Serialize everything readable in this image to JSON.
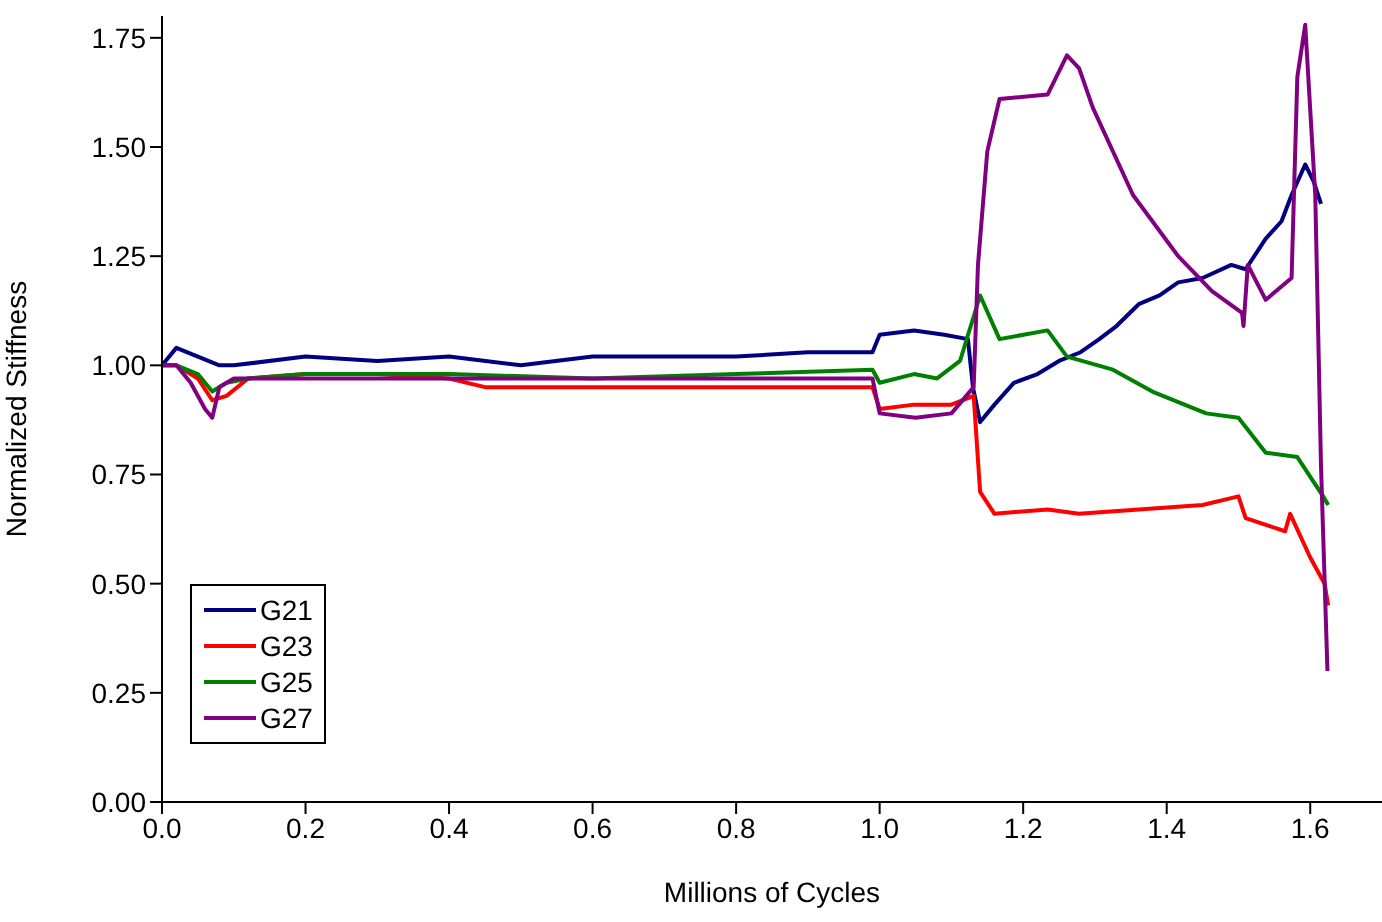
{
  "chart_data": {
    "type": "line",
    "xlabel": "Millions of Cycles",
    "ylabel": "Normalized Stiffness",
    "xlim": [
      0,
      1.7
    ],
    "ylim": [
      0,
      1.8
    ],
    "xticks": [
      {
        "value": 0,
        "label": "0.0"
      },
      {
        "value": 0.2,
        "label": "0.2"
      },
      {
        "value": 0.4,
        "label": "0.4"
      },
      {
        "value": 0.6,
        "label": "0.6"
      },
      {
        "value": 0.8,
        "label": "0.8"
      },
      {
        "value": 1,
        "label": "1.0"
      },
      {
        "value": 1.2,
        "label": "1.2"
      },
      {
        "value": 1.4,
        "label": "1.4"
      },
      {
        "value": 1.6,
        "label": "1.6"
      }
    ],
    "yticks": [
      {
        "value": 0,
        "label": "0.00"
      },
      {
        "value": 0.25,
        "label": "0.25"
      },
      {
        "value": 0.5,
        "label": "0.50"
      },
      {
        "value": 0.75,
        "label": "0.75"
      },
      {
        "value": 1,
        "label": "1.00"
      },
      {
        "value": 1.25,
        "label": "1.25"
      },
      {
        "value": 1.5,
        "label": "1.50"
      },
      {
        "value": 1.75,
        "label": "1.75"
      }
    ],
    "grid": false,
    "legend": "bottom left",
    "marker": "none",
    "line_style": "solid",
    "series": [
      {
        "name": "G21",
        "color": "#000080",
        "x": [
          0,
          0.02,
          0.05,
          0.08,
          0.1,
          0.2,
          0.3,
          0.4,
          0.5,
          0.6,
          0.7,
          0.8,
          0.9,
          0.99,
          1.0,
          1.048,
          1.09,
          1.123,
          1.13,
          1.14,
          1.16,
          1.187,
          1.22,
          1.25,
          1.28,
          1.306,
          1.33,
          1.361,
          1.39,
          1.416,
          1.45,
          1.49,
          1.51,
          1.538,
          1.56,
          1.574,
          1.593,
          1.605,
          1.615
        ],
        "values": [
          1.0,
          1.04,
          1.02,
          1.0,
          1.0,
          1.02,
          1.01,
          1.02,
          1.0,
          1.02,
          1.02,
          1.02,
          1.03,
          1.03,
          1.07,
          1.08,
          1.07,
          1.06,
          0.95,
          0.87,
          0.91,
          0.96,
          0.98,
          1.01,
          1.03,
          1.06,
          1.09,
          1.14,
          1.16,
          1.19,
          1.2,
          1.23,
          1.22,
          1.29,
          1.33,
          1.39,
          1.46,
          1.42,
          1.37
        ]
      },
      {
        "name": "G23",
        "color": "#ff0000",
        "x": [
          0,
          0.02,
          0.05,
          0.07,
          0.09,
          0.12,
          0.2,
          0.3,
          0.4,
          0.45,
          0.6,
          0.8,
          0.99,
          1.0,
          1.048,
          1.1,
          1.131,
          1.14,
          1.16,
          1.234,
          1.278,
          1.361,
          1.45,
          1.5,
          1.51,
          1.565,
          1.572,
          1.6,
          1.62,
          1.625
        ],
        "values": [
          1.0,
          1.0,
          0.97,
          0.92,
          0.93,
          0.97,
          0.98,
          0.98,
          0.97,
          0.95,
          0.95,
          0.95,
          0.95,
          0.9,
          0.91,
          0.91,
          0.93,
          0.71,
          0.66,
          0.67,
          0.66,
          0.67,
          0.68,
          0.7,
          0.65,
          0.62,
          0.66,
          0.56,
          0.5,
          0.45
        ]
      },
      {
        "name": "G25",
        "color": "#008000",
        "x": [
          0,
          0.02,
          0.05,
          0.07,
          0.09,
          0.12,
          0.2,
          0.4,
          0.6,
          0.8,
          0.99,
          1.0,
          1.048,
          1.08,
          1.112,
          1.14,
          1.167,
          1.234,
          1.261,
          1.325,
          1.38,
          1.455,
          1.5,
          1.538,
          1.582,
          1.618,
          1.625
        ],
        "values": [
          1.0,
          1.0,
          0.98,
          0.94,
          0.96,
          0.97,
          0.98,
          0.98,
          0.97,
          0.98,
          0.99,
          0.96,
          0.98,
          0.97,
          1.01,
          1.16,
          1.06,
          1.08,
          1.02,
          0.99,
          0.94,
          0.89,
          0.88,
          0.8,
          0.79,
          0.7,
          0.68
        ]
      },
      {
        "name": "G27",
        "color": "#800080",
        "x": [
          0,
          0.02,
          0.04,
          0.06,
          0.07,
          0.08,
          0.1,
          0.2,
          0.4,
          0.6,
          0.8,
          0.99,
          1.0,
          1.05,
          1.1,
          1.131,
          1.137,
          1.15,
          1.167,
          1.234,
          1.261,
          1.278,
          1.297,
          1.353,
          1.416,
          1.463,
          1.505,
          1.507,
          1.513,
          1.538,
          1.574,
          1.582,
          1.593,
          1.607,
          1.615,
          1.624
        ],
        "values": [
          1.0,
          1.0,
          0.96,
          0.9,
          0.88,
          0.95,
          0.97,
          0.97,
          0.97,
          0.97,
          0.97,
          0.97,
          0.89,
          0.88,
          0.89,
          0.95,
          1.23,
          1.49,
          1.61,
          1.62,
          1.71,
          1.68,
          1.59,
          1.39,
          1.25,
          1.17,
          1.12,
          1.09,
          1.23,
          1.15,
          1.2,
          1.66,
          1.78,
          1.39,
          0.77,
          0.3
        ]
      }
    ]
  }
}
